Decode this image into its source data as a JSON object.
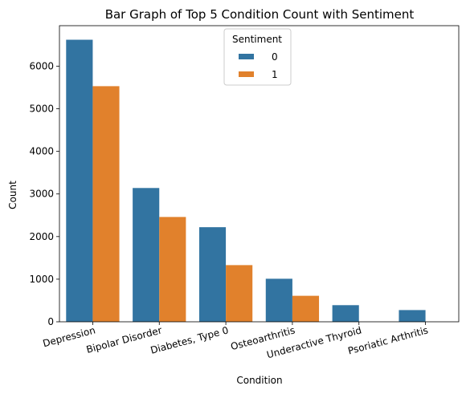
{
  "chart_data": {
    "type": "bar",
    "title": "Bar Graph of Top 5 Condition Count with Sentiment",
    "xlabel": "Condition",
    "ylabel": "Count",
    "categories": [
      "Depression",
      "Bipolar Disorder",
      "Diabetes, Type 0",
      "Osteoarthritis",
      "Underactive Thyroid",
      "Psoriatic Arthritis"
    ],
    "series": [
      {
        "name": "0",
        "color": "#3274a1",
        "values": [
          6620,
          3140,
          2220,
          1010,
          390,
          275
        ]
      },
      {
        "name": "1",
        "color": "#e1812c",
        "values": [
          5530,
          2460,
          1330,
          610,
          0,
          0
        ]
      }
    ],
    "ylim": [
      0,
      6950
    ],
    "yticks": [
      0,
      1000,
      2000,
      3000,
      4000,
      5000,
      6000
    ],
    "legend": {
      "title": "Sentiment",
      "position": "top-center"
    },
    "grid": false
  }
}
